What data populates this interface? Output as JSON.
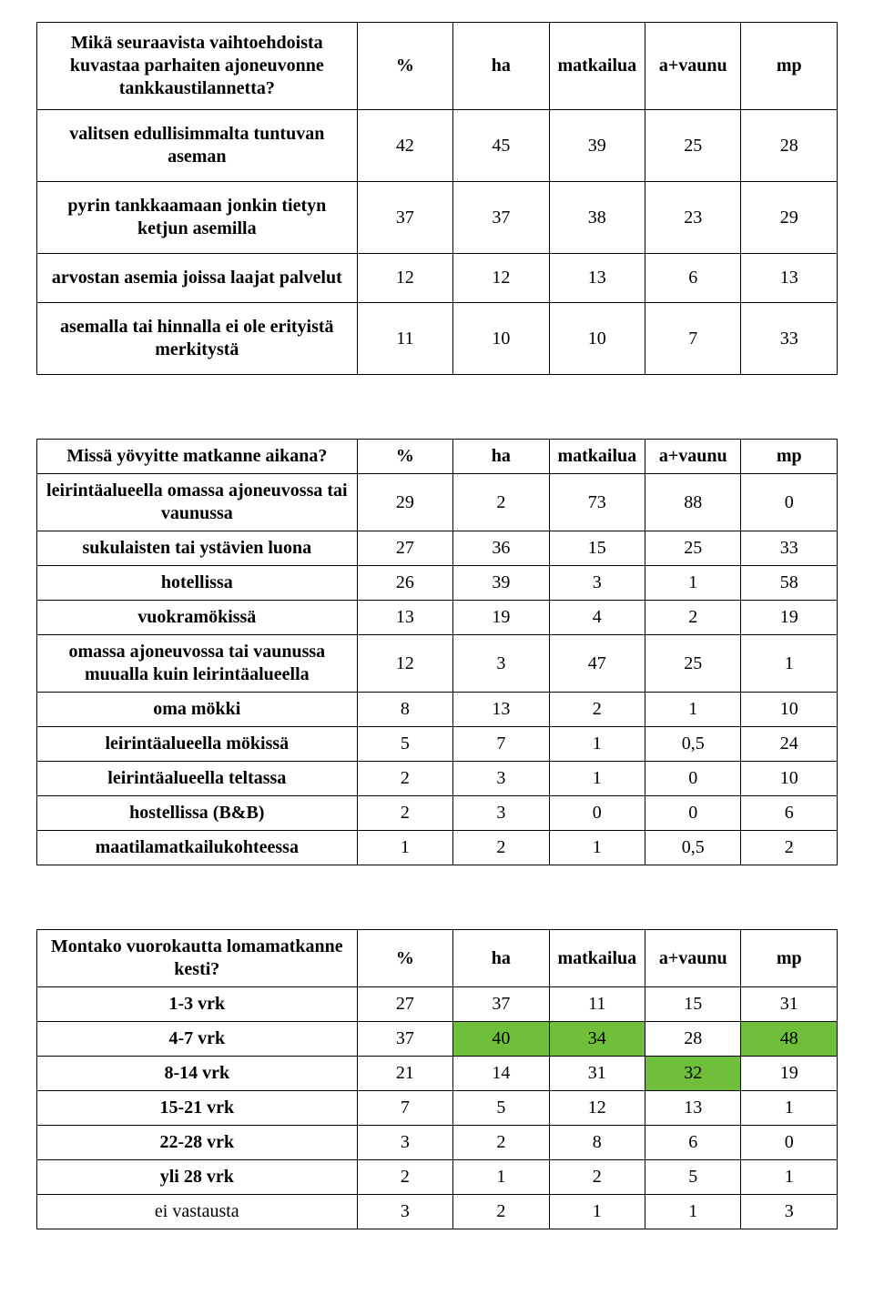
{
  "highlight_color": "#6fbf3a",
  "tables": [
    {
      "tall_rows": true,
      "header": [
        "Mikä seuraavista vaihtoehdoista kuvastaa parhaiten ajoneuvonne tankkaustilannetta?",
        "%",
        "ha",
        "matkailua",
        "a+vaunu",
        "mp"
      ],
      "rows": [
        {
          "label": "valitsen edullisimmalta tuntuvan aseman",
          "cells": [
            "42",
            "45",
            "39",
            "25",
            "28"
          ]
        },
        {
          "label": "pyrin tankkaamaan jonkin tietyn ketjun asemilla",
          "cells": [
            "37",
            "37",
            "38",
            "23",
            "29"
          ]
        },
        {
          "label": "arvostan asemia joissa laajat palvelut",
          "cells": [
            "12",
            "12",
            "13",
            "6",
            "13"
          ]
        },
        {
          "label": "asemalla tai hinnalla ei ole erityistä merkitystä",
          "cells": [
            "11",
            "10",
            "10",
            "7",
            "33"
          ]
        }
      ]
    },
    {
      "tall_rows": false,
      "header": [
        "Missä yövyitte matkanne aikana?",
        "%",
        "ha",
        "matkailua",
        "a+vaunu",
        "mp"
      ],
      "rows": [
        {
          "label": "leirintäalueella omassa ajoneuvossa tai vaunussa",
          "cells": [
            "29",
            "2",
            "73",
            "88",
            "0"
          ]
        },
        {
          "label": "sukulaisten tai ystävien luona",
          "cells": [
            "27",
            "36",
            "15",
            "25",
            "33"
          ]
        },
        {
          "label": "hotellissa",
          "cells": [
            "26",
            "39",
            "3",
            "1",
            "58"
          ]
        },
        {
          "label": "vuokramökissä",
          "cells": [
            "13",
            "19",
            "4",
            "2",
            "19"
          ]
        },
        {
          "label": "omassa ajoneuvossa tai vaunussa muualla kuin leirintäalueella",
          "cells": [
            "12",
            "3",
            "47",
            "25",
            "1"
          ]
        },
        {
          "label": "oma mökki",
          "cells": [
            "8",
            "13",
            "2",
            "1",
            "10"
          ]
        },
        {
          "label": "leirintäalueella mökissä",
          "cells": [
            "5",
            "7",
            "1",
            "0,5",
            "24"
          ]
        },
        {
          "label": "leirintäalueella teltassa",
          "cells": [
            "2",
            "3",
            "1",
            "0",
            "10"
          ]
        },
        {
          "label": "hostellissa (B&B)",
          "cells": [
            "2",
            "3",
            "0",
            "0",
            "6"
          ]
        },
        {
          "label": "maatilamatkailukohteessa",
          "cells": [
            "1",
            "2",
            "1",
            "0,5",
            "2"
          ]
        }
      ]
    },
    {
      "tall_rows": false,
      "header": [
        "Montako vuorokautta lomamatkanne kesti?",
        "%",
        "ha",
        "matkailua",
        "a+vaunu",
        "mp"
      ],
      "rows": [
        {
          "label": "1-3 vrk",
          "cells": [
            "27",
            "37",
            "11",
            "15",
            "31"
          ]
        },
        {
          "label": "4-7 vrk",
          "cells": [
            "37",
            "40",
            "34",
            "28",
            "48"
          ],
          "highlight": [
            false,
            true,
            true,
            false,
            true
          ]
        },
        {
          "label": "8-14 vrk",
          "cells": [
            "21",
            "14",
            "31",
            "32",
            "19"
          ],
          "highlight": [
            false,
            false,
            false,
            true,
            false
          ]
        },
        {
          "label": "15-21 vrk",
          "cells": [
            "7",
            "5",
            "12",
            "13",
            "1"
          ]
        },
        {
          "label": "22-28 vrk",
          "cells": [
            "3",
            "2",
            "8",
            "6",
            "0"
          ]
        },
        {
          "label": "yli 28 vrk",
          "cells": [
            "2",
            "1",
            "2",
            "5",
            "1"
          ]
        },
        {
          "label": "ei vastausta",
          "label_normal": true,
          "cells": [
            "3",
            "2",
            "1",
            "1",
            "3"
          ]
        }
      ]
    }
  ]
}
